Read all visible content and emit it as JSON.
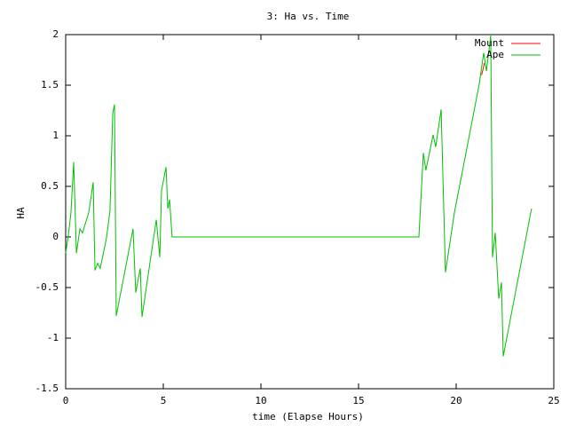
{
  "chart_data": {
    "type": "line",
    "title": "3: Ha vs. Time",
    "x_label": "time (Elapse Hours)",
    "y_label": "HA",
    "legend": "top-right",
    "xlim": [
      0,
      25
    ],
    "xticks": [
      0,
      5,
      10,
      15,
      20,
      25
    ],
    "ylim": [
      -1.5,
      2
    ],
    "yticks": [
      -1.5,
      -1,
      -0.5,
      0,
      0.5,
      1,
      1.5,
      2
    ],
    "series": [
      {
        "name": "Mount",
        "color": "#ff0000",
        "x": [
          21.3,
          21.38,
          21.45
        ],
        "values": [
          1.6,
          1.66,
          1.72
        ]
      },
      {
        "name": "Ape",
        "color": "#00c000",
        "x": [
          0,
          0.14,
          0.27,
          0.41,
          0.55,
          0.73,
          0.86,
          1.18,
          1.41,
          1.5,
          1.64,
          1.77,
          2.09,
          2.27,
          2.41,
          2.5,
          2.59,
          3.45,
          3.59,
          3.82,
          3.91,
          4.64,
          4.82,
          4.91,
          5.14,
          5.23,
          5.32,
          5.45,
          18.09,
          18.32,
          18.45,
          18.82,
          18.95,
          19.23,
          19.45,
          19.91,
          21.18,
          21.41,
          21.55,
          21.77,
          21.86,
          22,
          22.18,
          22.32,
          22.41,
          23.86
        ],
        "values": [
          -0.16,
          0.02,
          0.24,
          0.74,
          -0.16,
          0.08,
          0.04,
          0.24,
          0.54,
          -0.33,
          -0.26,
          -0.31,
          -0.01,
          0.26,
          1.22,
          1.31,
          -0.78,
          0.08,
          -0.55,
          -0.31,
          -0.79,
          0.17,
          -0.2,
          0.46,
          0.69,
          0.28,
          0.37,
          0,
          0,
          0.83,
          0.66,
          1.01,
          0.89,
          1.26,
          -0.35,
          0.24,
          1.51,
          1.82,
          1.64,
          1.99,
          -0.2,
          0.04,
          -0.61,
          -0.45,
          -1.18,
          0.28
        ]
      }
    ]
  }
}
